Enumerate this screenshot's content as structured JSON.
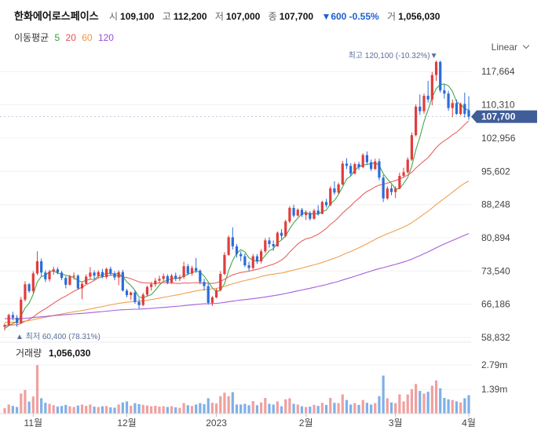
{
  "header": {
    "name": "한화에어로스페이스",
    "open_label": "시",
    "open": "109,100",
    "high_label": "고",
    "high": "112,200",
    "low_label": "저",
    "low": "107,000",
    "close_label": "종",
    "close": "107,700",
    "change": "▼600 -0.55%",
    "volume_label": "거",
    "volume": "1,056,030"
  },
  "ma_legend": {
    "title": "이동평균",
    "periods": [
      {
        "label": "5",
        "color": "#2e9e3a"
      },
      {
        "label": "20",
        "color": "#e85050"
      },
      {
        "label": "60",
        "color": "#f0963c"
      },
      {
        "label": "120",
        "color": "#9a4fd8"
      }
    ]
  },
  "scale_selector": {
    "label": "Linear"
  },
  "price_panel": {
    "y_ticks": [
      "117,664",
      "110,310",
      "102,956",
      "95,602",
      "88,248",
      "80,894",
      "73,540",
      "66,186",
      "58,832"
    ],
    "current_price_tag": "107,700",
    "high_annotation": "최고 120,100 (-10.32%)▼",
    "low_annotation": "▲ 최저 60,400 (78.31%)"
  },
  "volume_panel": {
    "title": "거래량",
    "value": "1,056,030",
    "y_ticks": [
      "2.79m",
      "1.39m"
    ]
  },
  "x_ticks": [
    "11월",
    "12월",
    "2023",
    "2월",
    "3월",
    "4월"
  ],
  "colors": {
    "up": "#e03d3d",
    "down": "#2b6cd9",
    "vol_up": "#f0a0a0",
    "vol_down": "#7fb0e8",
    "tag": "#3f5d99"
  },
  "chart_data": {
    "type": "candlestick",
    "y_range": [
      58832,
      121000
    ],
    "volume_range": [
      0,
      2790000
    ],
    "series": [
      {
        "name": "5",
        "type": "line"
      },
      {
        "name": "20",
        "type": "line"
      },
      {
        "name": "60",
        "type": "line"
      },
      {
        "name": "120",
        "type": "line"
      }
    ],
    "candles": [
      [
        61200,
        62000,
        60400,
        61600,
        310000
      ],
      [
        61600,
        64100,
        61400,
        63800,
        520000
      ],
      [
        63800,
        64500,
        62600,
        63200,
        440000
      ],
      [
        63200,
        63800,
        61200,
        62000,
        380000
      ],
      [
        62000,
        67800,
        61900,
        67200,
        1150000
      ],
      [
        67200,
        71300,
        66800,
        70600,
        1350000
      ],
      [
        70600,
        70900,
        68700,
        69100,
        690000
      ],
      [
        69100,
        73500,
        68600,
        73000,
        980000
      ],
      [
        73000,
        77900,
        72600,
        75700,
        2780000
      ],
      [
        75700,
        76300,
        72300,
        73200,
        880000
      ],
      [
        73200,
        73700,
        71100,
        71700,
        620000
      ],
      [
        71700,
        73800,
        71200,
        73400,
        560000
      ],
      [
        73400,
        74500,
        72700,
        73900,
        480000
      ],
      [
        73900,
        74400,
        72800,
        73200,
        400000
      ],
      [
        73200,
        73600,
        71500,
        72000,
        440000
      ],
      [
        72000,
        72400,
        69700,
        70500,
        500000
      ],
      [
        70500,
        72700,
        70300,
        72300,
        420000
      ],
      [
        72300,
        73200,
        71600,
        72500,
        380000
      ],
      [
        72500,
        72800,
        69400,
        69700,
        460000
      ],
      [
        69700,
        71200,
        67300,
        70700,
        520000
      ],
      [
        70700,
        72800,
        70600,
        72300,
        450000
      ],
      [
        72300,
        74400,
        71600,
        73200,
        520000
      ],
      [
        73200,
        73700,
        71700,
        72500,
        400000
      ],
      [
        72500,
        73700,
        72000,
        73300,
        380000
      ],
      [
        73300,
        74000,
        71900,
        72200,
        420000
      ],
      [
        72200,
        74300,
        71800,
        74000,
        440000
      ],
      [
        74000,
        74500,
        72500,
        73000,
        360000
      ],
      [
        73000,
        73500,
        71500,
        72100,
        340000
      ],
      [
        72100,
        73700,
        70400,
        73300,
        520000
      ],
      [
        73300,
        73800,
        69000,
        69200,
        640000
      ],
      [
        69200,
        69600,
        67700,
        68200,
        700000
      ],
      [
        68200,
        69000,
        67100,
        68800,
        450000
      ],
      [
        68800,
        69300,
        66300,
        66700,
        600000
      ],
      [
        66700,
        67500,
        65200,
        66000,
        540000
      ],
      [
        66000,
        68700,
        65800,
        68300,
        500000
      ],
      [
        68300,
        70300,
        68000,
        70000,
        460000
      ],
      [
        70000,
        71100,
        69200,
        70600,
        420000
      ],
      [
        70600,
        72000,
        70100,
        71400,
        450000
      ],
      [
        71400,
        72500,
        70800,
        71800,
        400000
      ],
      [
        71800,
        73000,
        71300,
        72400,
        420000
      ],
      [
        72400,
        72800,
        70600,
        71000,
        380000
      ],
      [
        71000,
        72900,
        70700,
        72500,
        420000
      ],
      [
        72500,
        73200,
        71300,
        71800,
        360000
      ],
      [
        71800,
        72700,
        71300,
        72200,
        330000
      ],
      [
        72200,
        75600,
        71800,
        74600,
        600000
      ],
      [
        74600,
        75100,
        72600,
        73000,
        480000
      ],
      [
        73000,
        74700,
        72500,
        74200,
        440000
      ],
      [
        74200,
        76400,
        73100,
        73600,
        520000
      ],
      [
        73600,
        73900,
        70600,
        71100,
        600000
      ],
      [
        71100,
        71800,
        69200,
        70200,
        540000
      ],
      [
        70200,
        70800,
        66100,
        66500,
        880000
      ],
      [
        66500,
        68000,
        65800,
        67700,
        620000
      ],
      [
        67700,
        69700,
        67500,
        69300,
        580000
      ],
      [
        69300,
        73500,
        69000,
        72900,
        1000000
      ],
      [
        72900,
        77700,
        72600,
        77100,
        1200000
      ],
      [
        77100,
        81400,
        76900,
        81000,
        1000000
      ],
      [
        81000,
        83200,
        78300,
        79000,
        1230000
      ],
      [
        79000,
        79500,
        76500,
        77300,
        520000
      ],
      [
        77300,
        77900,
        75700,
        76800,
        520000
      ],
      [
        76800,
        77400,
        74400,
        74800,
        560000
      ],
      [
        74800,
        75600,
        73600,
        74200,
        480000
      ],
      [
        74200,
        77300,
        73800,
        76800,
        720000
      ],
      [
        76800,
        77300,
        75100,
        75700,
        480000
      ],
      [
        75700,
        78400,
        75200,
        77900,
        640000
      ],
      [
        77900,
        80800,
        77500,
        80300,
        900000
      ],
      [
        80300,
        81000,
        78700,
        79500,
        560000
      ],
      [
        79500,
        80300,
        78000,
        79000,
        520000
      ],
      [
        79000,
        82300,
        78900,
        82000,
        700000
      ],
      [
        82000,
        82800,
        80600,
        81300,
        420000
      ],
      [
        81300,
        84900,
        81000,
        84500,
        820000
      ],
      [
        84500,
        87900,
        84100,
        87500,
        880000
      ],
      [
        87500,
        88200,
        85400,
        85800,
        560000
      ],
      [
        85800,
        87400,
        85600,
        87100,
        520000
      ],
      [
        87100,
        87500,
        85500,
        85900,
        420000
      ],
      [
        85900,
        87000,
        84800,
        86400,
        380000
      ],
      [
        86400,
        86800,
        84700,
        85100,
        400000
      ],
      [
        85100,
        87300,
        84900,
        86900,
        500000
      ],
      [
        86900,
        88100,
        85800,
        86200,
        440000
      ],
      [
        86200,
        89100,
        86100,
        88800,
        620000
      ],
      [
        88800,
        89500,
        87600,
        88100,
        500000
      ],
      [
        88100,
        92300,
        87900,
        91800,
        900000
      ],
      [
        91800,
        93400,
        90400,
        90900,
        620000
      ],
      [
        90900,
        93100,
        90500,
        92700,
        600000
      ],
      [
        92700,
        97900,
        92500,
        97300,
        1100000
      ],
      [
        97300,
        98500,
        96100,
        96800,
        780000
      ],
      [
        96800,
        97400,
        94600,
        95100,
        520000
      ],
      [
        95100,
        97600,
        94900,
        97200,
        600000
      ],
      [
        97200,
        97700,
        95900,
        96500,
        500000
      ],
      [
        96500,
        99600,
        96300,
        99200,
        780000
      ],
      [
        99200,
        100000,
        97000,
        97600,
        620000
      ],
      [
        97600,
        98200,
        95700,
        96100,
        520000
      ],
      [
        96100,
        98400,
        95900,
        97800,
        600000
      ],
      [
        97800,
        98400,
        93600,
        94200,
        1000000
      ],
      [
        94200,
        94800,
        88800,
        89600,
        2180000
      ],
      [
        89600,
        92300,
        89300,
        91800,
        880000
      ],
      [
        91800,
        92600,
        90300,
        91000,
        640000
      ],
      [
        91000,
        92300,
        89700,
        91800,
        600000
      ],
      [
        91800,
        95300,
        91600,
        94600,
        1100000
      ],
      [
        94600,
        96400,
        94200,
        95400,
        700000
      ],
      [
        95400,
        98700,
        95100,
        98200,
        1100000
      ],
      [
        98200,
        104200,
        97900,
        103600,
        1400000
      ],
      [
        103600,
        110400,
        103300,
        109900,
        1700000
      ],
      [
        109900,
        112600,
        108100,
        108900,
        1300000
      ],
      [
        108900,
        112800,
        108300,
        112300,
        1150000
      ],
      [
        112300,
        115600,
        110800,
        111500,
        1250000
      ],
      [
        111500,
        117600,
        110200,
        116900,
        1600000
      ],
      [
        116900,
        120100,
        115600,
        119800,
        1900000
      ],
      [
        119800,
        120100,
        113000,
        113500,
        1450000
      ],
      [
        113500,
        114800,
        111700,
        112800,
        900000
      ],
      [
        112800,
        113400,
        109000,
        109600,
        820000
      ],
      [
        109600,
        111500,
        107600,
        110700,
        780000
      ],
      [
        110700,
        111500,
        108100,
        108300,
        700000
      ],
      [
        108300,
        110800,
        108000,
        110500,
        640000
      ],
      [
        110500,
        113000,
        107500,
        108300,
        880000
      ],
      [
        109100,
        112200,
        107000,
        107700,
        1056030
      ]
    ]
  }
}
